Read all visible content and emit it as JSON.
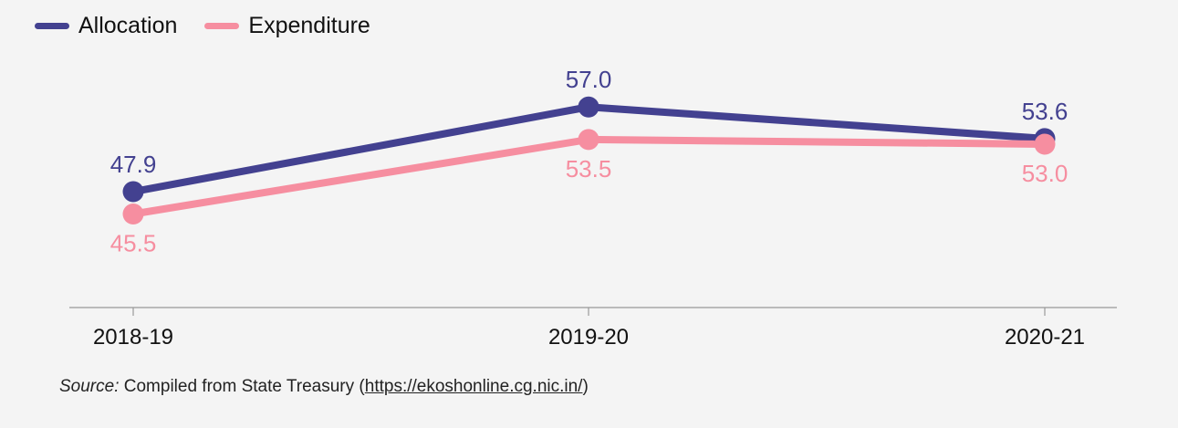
{
  "legend": {
    "allocation": "Allocation",
    "expenditure": "Expenditure"
  },
  "colors": {
    "allocation": "#434190",
    "expenditure": "#f68ea0",
    "axis": "#999999",
    "background": "#f4f4f4"
  },
  "chart_data": {
    "type": "line",
    "categories": [
      "2018-19",
      "2019-20",
      "2020-21"
    ],
    "series": [
      {
        "name": "Allocation",
        "values": [
          47.9,
          57.0,
          53.6
        ],
        "labels": [
          "47.9",
          "57.0",
          "53.6"
        ]
      },
      {
        "name": "Expenditure",
        "values": [
          45.5,
          53.5,
          53.0
        ],
        "labels": [
          "45.5",
          "53.5",
          "53.0"
        ]
      }
    ],
    "title": "",
    "xlabel": "",
    "ylabel": "",
    "ylim": [
      35,
      60
    ],
    "grid": false,
    "legend_position": "top-left"
  },
  "source": {
    "prefix": "Source:",
    "text": " Compiled from State Treasury (",
    "link": "https://ekoshonline.cg.nic.in/",
    "suffix": ")"
  }
}
